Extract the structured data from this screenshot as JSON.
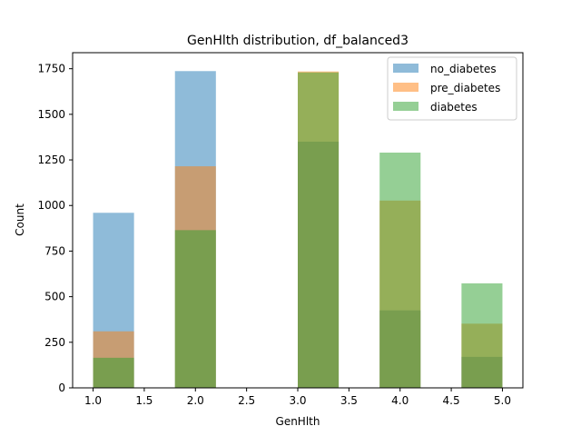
{
  "chart_data": {
    "type": "bar",
    "title": "GenHlth distribution, df_balanced3",
    "xlabel": "GenHlth",
    "ylabel": "Count",
    "xlim": [
      0.8,
      5.2
    ],
    "ylim": [
      0,
      1838
    ],
    "xticks": [
      1.0,
      1.5,
      2.0,
      2.5,
      3.0,
      3.5,
      4.0,
      4.5,
      5.0
    ],
    "xtick_labels": [
      "1.0",
      "1.5",
      "2.0",
      "2.5",
      "3.0",
      "3.5",
      "4.0",
      "4.5",
      "5.0"
    ],
    "yticks": [
      0,
      250,
      500,
      750,
      1000,
      1250,
      1500,
      1750
    ],
    "ytick_labels": [
      "0",
      "250",
      "500",
      "750",
      "1000",
      "1250",
      "1500",
      "1750"
    ],
    "bin_edges": [
      1.0,
      1.4,
      1.8,
      2.2,
      2.6,
      3.0,
      3.4,
      3.8,
      4.2,
      4.6,
      5.0
    ],
    "series": [
      {
        "name": "no_diabetes",
        "color": "#1f77b4",
        "values": [
          960,
          0,
          1737,
          0,
          0,
          1350,
          0,
          425,
          0,
          170
        ]
      },
      {
        "name": "pre_diabetes",
        "color": "#ff7f0e",
        "values": [
          310,
          0,
          1215,
          0,
          0,
          1735,
          0,
          1027,
          0,
          352
        ]
      },
      {
        "name": "diabetes",
        "color": "#2ca02c",
        "values": [
          165,
          0,
          865,
          0,
          0,
          1730,
          0,
          1290,
          0,
          573
        ]
      }
    ],
    "alpha": 0.5,
    "legend": "top-right",
    "grid": false
  }
}
